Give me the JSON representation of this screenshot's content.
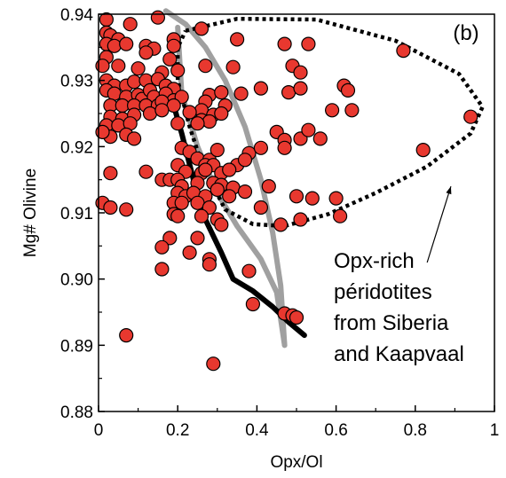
{
  "chart_data": {
    "type": "scatter",
    "panel_label": "(b)",
    "xlabel": "Opx/Ol",
    "ylabel": "Mg# Olivine",
    "xlim": [
      0,
      1
    ],
    "ylim": [
      0.88,
      0.94
    ],
    "xticks": [
      0,
      0.2,
      0.4,
      0.6,
      0.8,
      1
    ],
    "xtick_labels": [
      "0",
      "0.2",
      "0.4",
      "0.6",
      "0.8",
      "1"
    ],
    "yticks": [
      0.88,
      0.89,
      0.9,
      0.91,
      0.92,
      0.93,
      0.94
    ],
    "ytick_labels": [
      "0.88",
      "0.89",
      "0.90",
      "0.91",
      "0.92",
      "0.93",
      "0.94"
    ],
    "annotation_lines": [
      "Opx-rich",
      "péridotites",
      "from Siberia",
      "and Kaapvaal"
    ],
    "colors": {
      "marker_fill": "#e8382f",
      "marker_stroke": "#000000",
      "black_curve": "#000000",
      "gray_curve": "#a0a0a0",
      "field_outline": "#000000"
    },
    "points": [
      [
        0.02,
        0.9392
      ],
      [
        0.08,
        0.9385
      ],
      [
        0.15,
        0.9395
      ],
      [
        0.02,
        0.9372
      ],
      [
        0.03,
        0.9368
      ],
      [
        0.05,
        0.9362
      ],
      [
        0.02,
        0.9355
      ],
      [
        0.04,
        0.9352
      ],
      [
        0.07,
        0.9355
      ],
      [
        0.12,
        0.9352
      ],
      [
        0.14,
        0.9348
      ],
      [
        0.19,
        0.9362
      ],
      [
        0.19,
        0.9352
      ],
      [
        0.26,
        0.9378
      ],
      [
        0.35,
        0.9362
      ],
      [
        0.47,
        0.9355
      ],
      [
        0.53,
        0.9355
      ],
      [
        0.02,
        0.9335
      ],
      [
        0.12,
        0.9342
      ],
      [
        0.18,
        0.9332
      ],
      [
        0.01,
        0.9322
      ],
      [
        0.05,
        0.9322
      ],
      [
        0.1,
        0.9318
      ],
      [
        0.16,
        0.9312
      ],
      [
        0.2,
        0.9315
      ],
      [
        0.27,
        0.9322
      ],
      [
        0.34,
        0.932
      ],
      [
        0.49,
        0.9322
      ],
      [
        0.51,
        0.9312
      ],
      [
        0.77,
        0.9345
      ],
      [
        0.02,
        0.93
      ],
      [
        0.04,
        0.9292
      ],
      [
        0.02,
        0.9285
      ],
      [
        0.07,
        0.9292
      ],
      [
        0.09,
        0.9298
      ],
      [
        0.12,
        0.93
      ],
      [
        0.15,
        0.9302
      ],
      [
        0.17,
        0.9292
      ],
      [
        0.19,
        0.9287
      ],
      [
        0.04,
        0.928
      ],
      [
        0.07,
        0.9275
      ],
      [
        0.1,
        0.9278
      ],
      [
        0.11,
        0.9272
      ],
      [
        0.13,
        0.9285
      ],
      [
        0.14,
        0.9275
      ],
      [
        0.17,
        0.928
      ],
      [
        0.19,
        0.927
      ],
      [
        0.21,
        0.9275
      ],
      [
        0.28,
        0.9278
      ],
      [
        0.31,
        0.9282
      ],
      [
        0.36,
        0.928
      ],
      [
        0.41,
        0.9288
      ],
      [
        0.48,
        0.9282
      ],
      [
        0.51,
        0.9288
      ],
      [
        0.62,
        0.9292
      ],
      [
        0.63,
        0.9285
      ],
      [
        0.03,
        0.9262
      ],
      [
        0.06,
        0.9262
      ],
      [
        0.09,
        0.9262
      ],
      [
        0.12,
        0.9262
      ],
      [
        0.15,
        0.9262
      ],
      [
        0.16,
        0.9268
      ],
      [
        0.19,
        0.9262
      ],
      [
        0.27,
        0.9268
      ],
      [
        0.32,
        0.9262
      ],
      [
        0.59,
        0.9255
      ],
      [
        0.64,
        0.9255
      ],
      [
        0.13,
        0.925
      ],
      [
        0.16,
        0.9255
      ],
      [
        0.26,
        0.9255
      ],
      [
        0.29,
        0.9248
      ],
      [
        0.31,
        0.925
      ],
      [
        0.03,
        0.9245
      ],
      [
        0.06,
        0.9242
      ],
      [
        0.09,
        0.9248
      ],
      [
        0.23,
        0.9252
      ],
      [
        0.26,
        0.924
      ],
      [
        0.28,
        0.9238
      ],
      [
        0.02,
        0.9232
      ],
      [
        0.05,
        0.9232
      ],
      [
        0.08,
        0.9235
      ],
      [
        0.2,
        0.9235
      ],
      [
        0.25,
        0.9235
      ],
      [
        0.03,
        0.9215
      ],
      [
        0.01,
        0.9222
      ],
      [
        0.07,
        0.9218
      ],
      [
        0.09,
        0.9212
      ],
      [
        0.45,
        0.9222
      ],
      [
        0.47,
        0.921
      ],
      [
        0.51,
        0.9212
      ],
      [
        0.53,
        0.9225
      ],
      [
        0.56,
        0.9212
      ],
      [
        0.94,
        0.9245
      ],
      [
        0.21,
        0.9198
      ],
      [
        0.23,
        0.9192
      ],
      [
        0.25,
        0.9182
      ],
      [
        0.28,
        0.918
      ],
      [
        0.3,
        0.9195
      ],
      [
        0.38,
        0.919
      ],
      [
        0.41,
        0.9198
      ],
      [
        0.47,
        0.9198
      ],
      [
        0.82,
        0.9195
      ],
      [
        0.2,
        0.9172
      ],
      [
        0.27,
        0.9172
      ],
      [
        0.29,
        0.9172
      ],
      [
        0.35,
        0.9172
      ],
      [
        0.37,
        0.918
      ],
      [
        0.03,
        0.916
      ],
      [
        0.12,
        0.9162
      ],
      [
        0.22,
        0.9162
      ],
      [
        0.26,
        0.916
      ],
      [
        0.27,
        0.9165
      ],
      [
        0.31,
        0.916
      ],
      [
        0.33,
        0.9165
      ],
      [
        0.16,
        0.915
      ],
      [
        0.18,
        0.915
      ],
      [
        0.2,
        0.915
      ],
      [
        0.21,
        0.914
      ],
      [
        0.25,
        0.9145
      ],
      [
        0.29,
        0.9145
      ],
      [
        0.31,
        0.9142
      ],
      [
        0.34,
        0.9138
      ],
      [
        0.37,
        0.9132
      ],
      [
        0.43,
        0.914
      ],
      [
        0.5,
        0.9125
      ],
      [
        0.2,
        0.913
      ],
      [
        0.22,
        0.9125
      ],
      [
        0.24,
        0.913
      ],
      [
        0.27,
        0.9125
      ],
      [
        0.3,
        0.9135
      ],
      [
        0.33,
        0.9125
      ],
      [
        0.54,
        0.9122
      ],
      [
        0.6,
        0.9122
      ],
      [
        0.01,
        0.9115
      ],
      [
        0.03,
        0.9108
      ],
      [
        0.07,
        0.9105
      ],
      [
        0.19,
        0.9115
      ],
      [
        0.21,
        0.9115
      ],
      [
        0.25,
        0.9115
      ],
      [
        0.28,
        0.9108
      ],
      [
        0.41,
        0.9108
      ],
      [
        0.19,
        0.9098
      ],
      [
        0.2,
        0.9095
      ],
      [
        0.26,
        0.9095
      ],
      [
        0.3,
        0.909
      ],
      [
        0.31,
        0.9082
      ],
      [
        0.46,
        0.9082
      ],
      [
        0.51,
        0.909
      ],
      [
        0.61,
        0.9095
      ],
      [
        0.18,
        0.9062
      ],
      [
        0.25,
        0.9062
      ],
      [
        0.16,
        0.9048
      ],
      [
        0.23,
        0.904
      ],
      [
        0.28,
        0.903
      ],
      [
        0.28,
        0.9022
      ],
      [
        0.16,
        0.9015
      ],
      [
        0.38,
        0.9012
      ],
      [
        0.39,
        0.8962
      ],
      [
        0.47,
        0.8948
      ],
      [
        0.49,
        0.8945
      ],
      [
        0.5,
        0.8942
      ],
      [
        0.07,
        0.8915
      ],
      [
        0.29,
        0.8872
      ]
    ],
    "black_curve": [
      [
        0.19,
        0.9262
      ],
      [
        0.21,
        0.922
      ],
      [
        0.24,
        0.915
      ],
      [
        0.27,
        0.909
      ],
      [
        0.31,
        0.904
      ],
      [
        0.34,
        0.9
      ],
      [
        0.39,
        0.8982
      ],
      [
        0.44,
        0.8958
      ],
      [
        0.48,
        0.8935
      ],
      [
        0.52,
        0.8915
      ]
    ],
    "gray_curve_outer": [
      [
        0.17,
        0.9405
      ],
      [
        0.22,
        0.9385
      ],
      [
        0.27,
        0.935
      ],
      [
        0.32,
        0.93
      ],
      [
        0.37,
        0.923
      ],
      [
        0.41,
        0.915
      ],
      [
        0.44,
        0.907
      ],
      [
        0.46,
        0.899
      ],
      [
        0.47,
        0.89
      ]
    ],
    "gray_curve_inner": [
      [
        0.2,
        0.938
      ],
      [
        0.21,
        0.928
      ],
      [
        0.25,
        0.92
      ],
      [
        0.3,
        0.913
      ],
      [
        0.35,
        0.908
      ],
      [
        0.41,
        0.903
      ],
      [
        0.45,
        0.898
      ],
      [
        0.47,
        0.89
      ]
    ],
    "field_outline": [
      [
        0.22,
        0.9375
      ],
      [
        0.35,
        0.9393
      ],
      [
        0.55,
        0.9392
      ],
      [
        0.75,
        0.936
      ],
      [
        0.91,
        0.931
      ],
      [
        0.97,
        0.926
      ],
      [
        0.94,
        0.922
      ],
      [
        0.83,
        0.917
      ],
      [
        0.7,
        0.913
      ],
      [
        0.58,
        0.9098
      ],
      [
        0.47,
        0.908
      ],
      [
        0.39,
        0.9083
      ],
      [
        0.32,
        0.9105
      ],
      [
        0.26,
        0.9175
      ],
      [
        0.23,
        0.923
      ],
      [
        0.2,
        0.93
      ],
      [
        0.2,
        0.935
      ],
      [
        0.22,
        0.9375
      ]
    ],
    "annotation_arrow": [
      [
        0.83,
        0.9025
      ],
      [
        0.89,
        0.914
      ]
    ]
  }
}
